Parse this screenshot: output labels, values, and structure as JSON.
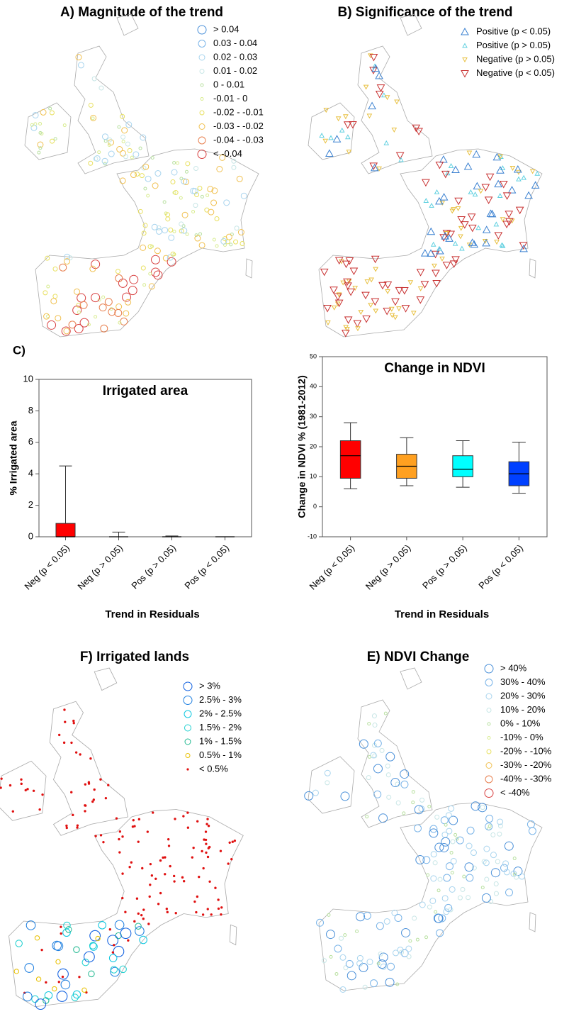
{
  "panel_label": "C)",
  "maps": [
    {
      "title": "A) Magnitude of the trend",
      "legend": [
        {
          "label": "> 0.04",
          "color": "#4a90d9",
          "shape": "circle"
        },
        {
          "label": "0.03 - 0.04",
          "color": "#7ab4e8",
          "shape": "circle"
        },
        {
          "label": "0.02 - 0.03",
          "color": "#a8d4ee",
          "shape": "circle"
        },
        {
          "label": "0.01 - 0.02",
          "color": "#c8e6e6",
          "shape": "circle"
        },
        {
          "label": "0 - 0.01",
          "color": "#b8e0a0",
          "shape": "circle"
        },
        {
          "label": "-0.01 - 0",
          "color": "#d8ec90",
          "shape": "circle"
        },
        {
          "label": "-0.02 - -0.01",
          "color": "#e8e060",
          "shape": "circle"
        },
        {
          "label": "-0.03 - -0.02",
          "color": "#f0c050",
          "shape": "circle"
        },
        {
          "label": "-0.04 - -0.03",
          "color": "#e88050",
          "shape": "circle"
        },
        {
          "label": "< -0.04",
          "color": "#d84040",
          "shape": "circle"
        }
      ]
    },
    {
      "title": "B) Significance of the trend",
      "legend": [
        {
          "label": "Positive (p < 0.05)",
          "color": "#3a80d0",
          "shape": "up"
        },
        {
          "label": "Positive (p > 0.05)",
          "color": "#60d0e0",
          "shape": "up"
        },
        {
          "label": "Negative (p > 0.05)",
          "color": "#e8c040",
          "shape": "down"
        },
        {
          "label": "Negative (p < 0.05)",
          "color": "#c83030",
          "shape": "down"
        }
      ]
    },
    {
      "title": "F) Irrigated lands",
      "legend": [
        {
          "label": "> 3%",
          "color": "#1060e0",
          "shape": "circle"
        },
        {
          "label": "2.5% - 3%",
          "color": "#2080e0",
          "shape": "circle"
        },
        {
          "label": "2% - 2.5%",
          "color": "#10c8e0",
          "shape": "circle"
        },
        {
          "label": "1.5% - 2%",
          "color": "#20d0d0",
          "shape": "circle"
        },
        {
          "label": "1% - 1.5%",
          "color": "#20b890",
          "shape": "circle"
        },
        {
          "label": "0.5% - 1%",
          "color": "#e8c000",
          "shape": "circle"
        },
        {
          "label": "< 0.5%",
          "color": "#e01010",
          "shape": "dot"
        }
      ]
    },
    {
      "title": "E) NDVI Change",
      "legend": [
        {
          "label": "> 40%",
          "color": "#4a90d9",
          "shape": "circle"
        },
        {
          "label": "30% - 40%",
          "color": "#7ab4e8",
          "shape": "circle"
        },
        {
          "label": "20% - 30%",
          "color": "#a8d4ee",
          "shape": "circle"
        },
        {
          "label": "10% - 20%",
          "color": "#c8e6e6",
          "shape": "circle"
        },
        {
          "label": "0% - 10%",
          "color": "#b8e0a0",
          "shape": "circle"
        },
        {
          "label": "-10% - 0%",
          "color": "#d8ec90",
          "shape": "circle"
        },
        {
          "label": "-20% - -10%",
          "color": "#e8e060",
          "shape": "circle"
        },
        {
          "label": "-30% - -20%",
          "color": "#f0c050",
          "shape": "circle"
        },
        {
          "label": "-40% - -30%",
          "color": "#e88050",
          "shape": "circle"
        },
        {
          "label": "< -40%",
          "color": "#d84040",
          "shape": "circle"
        }
      ]
    }
  ],
  "chart_data": [
    {
      "type": "box",
      "title": "Irrigated area",
      "xlabel": "Trend in Residuals",
      "ylabel": "% Irrigated area",
      "categories": [
        "Neg (p < 0.05)",
        "Neg (p > 0.05)",
        "Pos (p > 0.05)",
        "Pos (p < 0.05)"
      ],
      "boxes": [
        {
          "min": 0,
          "q1": 0,
          "median": 0,
          "q3": 0.85,
          "max": 4.5
        },
        {
          "min": 0,
          "q1": 0,
          "median": 0,
          "q3": 0,
          "max": 0.3
        },
        {
          "min": 0,
          "q1": 0,
          "median": 0,
          "q3": 0,
          "max": 0.05
        },
        {
          "min": 0,
          "q1": 0,
          "median": 0,
          "q3": 0,
          "max": 0
        }
      ],
      "colors": [
        "#ff0000",
        "#ff0000",
        "#ff0000",
        "#ff0000"
      ],
      "ylim": [
        0,
        10
      ],
      "yticks": [
        0,
        2,
        4,
        6,
        8,
        10
      ]
    },
    {
      "type": "box",
      "title": "Change in NDVI",
      "xlabel": "Trend in Residuals",
      "ylabel": "Change in NDVI % (1981-2012)",
      "categories": [
        "Neg (p < 0.05)",
        "Neg (p > 0.05)",
        "Pos (p > 0.05)",
        "Pos (p < 0.05)"
      ],
      "boxes": [
        {
          "min": 6,
          "q1": 9.5,
          "median": 17,
          "q3": 22,
          "max": 28
        },
        {
          "min": 7,
          "q1": 9.5,
          "median": 13.5,
          "q3": 17.5,
          "max": 23
        },
        {
          "min": 6.5,
          "q1": 10,
          "median": 12.5,
          "q3": 17,
          "max": 22
        },
        {
          "min": 4.5,
          "q1": 7,
          "median": 11,
          "q3": 15,
          "max": 21.5
        }
      ],
      "colors": [
        "#ff0000",
        "#ffa020",
        "#00ffff",
        "#0040ff"
      ],
      "ylim": [
        -10,
        50
      ],
      "yticks": [
        -10,
        0,
        10,
        20,
        30,
        40,
        50
      ]
    }
  ]
}
